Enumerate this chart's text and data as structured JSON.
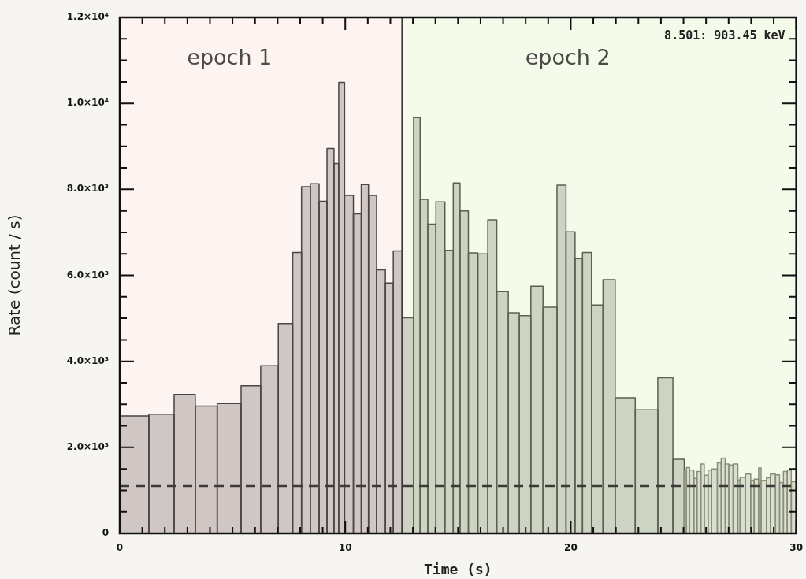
{
  "chart_data": {
    "type": "histogram",
    "xlabel": "Time (s)",
    "ylabel": "Rate (count / s)",
    "xlim": [
      0,
      30
    ],
    "ylim": [
      0,
      12000
    ],
    "xticks": [
      0,
      {
        "value": 1,
        "label": null
      },
      {
        "value": 2,
        "label": null
      },
      {
        "value": 3,
        "label": null
      },
      {
        "value": 4,
        "label": null
      },
      {
        "value": 5,
        "label": null
      },
      {
        "value": 6,
        "label": null
      },
      {
        "value": 7,
        "label": null
      },
      {
        "value": 8,
        "label": null
      },
      {
        "value": 9,
        "label": null
      },
      10,
      {
        "value": 11,
        "label": null
      },
      {
        "value": 12,
        "label": null
      },
      {
        "value": 13,
        "label": null
      },
      {
        "value": 14,
        "label": null
      },
      {
        "value": 15,
        "label": null
      },
      {
        "value": 16,
        "label": null
      },
      {
        "value": 17,
        "label": null
      },
      {
        "value": 18,
        "label": null
      },
      {
        "value": 19,
        "label": null
      },
      20,
      {
        "value": 21,
        "label": null
      },
      {
        "value": 22,
        "label": null
      },
      {
        "value": 23,
        "label": null
      },
      {
        "value": 24,
        "label": null
      },
      {
        "value": 25,
        "label": null
      },
      {
        "value": 26,
        "label": null
      },
      {
        "value": 27,
        "label": null
      },
      {
        "value": 28,
        "label": null
      },
      {
        "value": 29,
        "label": null
      },
      30
    ],
    "yticks": [
      0,
      {
        "value": 500,
        "label": null
      },
      {
        "value": 1000,
        "label": null
      },
      {
        "value": 1500,
        "label": null
      },
      {
        "value": 2000,
        "label": "2.0×10³"
      },
      {
        "value": 2500,
        "label": null
      },
      {
        "value": 3000,
        "label": null
      },
      {
        "value": 3500,
        "label": null
      },
      {
        "value": 4000,
        "label": "4.0×10³"
      },
      {
        "value": 4500,
        "label": null
      },
      {
        "value": 5000,
        "label": null
      },
      {
        "value": 5500,
        "label": null
      },
      {
        "value": 6000,
        "label": "6.0×10³"
      },
      {
        "value": 6500,
        "label": null
      },
      {
        "value": 7000,
        "label": null
      },
      {
        "value": 7500,
        "label": null
      },
      {
        "value": 8000,
        "label": "8.0×10³"
      },
      {
        "value": 8500,
        "label": null
      },
      {
        "value": 9000,
        "label": null
      },
      {
        "value": 9500,
        "label": null
      },
      {
        "value": 10000,
        "label": "1.0×10⁴"
      },
      {
        "value": 10500,
        "label": null
      },
      {
        "value": 11000,
        "label": null
      },
      {
        "value": 11500,
        "label": null
      },
      {
        "value": 12000,
        "label": "1.2×10⁴"
      }
    ],
    "bins": [
      0,
      1.29,
      2.41,
      3.35,
      4.32,
      5.38,
      6.25,
      7.03,
      7.67,
      8.06,
      8.45,
      8.84,
      9.19,
      9.5,
      9.71,
      9.97,
      10.36,
      10.71,
      11.03,
      11.39,
      11.78,
      12.13,
      12.53,
      13.03,
      13.32,
      13.66,
      14.02,
      14.42,
      14.79,
      15.09,
      15.46,
      15.88,
      16.32,
      16.72,
      17.23,
      17.72,
      18.23,
      18.77,
      19.39,
      19.79,
      20.19,
      20.52,
      20.92,
      21.43,
      21.97,
      22.86,
      23.86,
      24.53,
      25.03,
      25.13,
      25.27,
      25.46,
      25.6,
      25.77,
      25.92,
      26.09,
      26.24,
      26.5,
      26.67,
      26.85,
      27.01,
      27.2,
      27.41,
      27.51,
      27.75,
      27.98,
      28.13,
      28.33,
      28.44,
      28.68,
      28.85,
      29.08,
      29.26,
      29.43,
      29.6,
      29.78,
      30
    ],
    "values": [
      2730,
      2770,
      3230,
      2960,
      3020,
      3430,
      3900,
      4880,
      6530,
      8060,
      8130,
      7720,
      8950,
      8600,
      10490,
      7860,
      7430,
      8110,
      7860,
      6130,
      5820,
      6570,
      5010,
      9670,
      7770,
      7190,
      7710,
      6580,
      8150,
      7500,
      6520,
      6500,
      7290,
      5620,
      5130,
      5060,
      5750,
      5260,
      8100,
      7010,
      6390,
      6530,
      5310,
      5900,
      3150,
      2870,
      3620,
      1720,
      1470,
      1530,
      1470,
      1280,
      1440,
      1610,
      1350,
      1470,
      1500,
      1640,
      1750,
      1610,
      1590,
      1610,
      1240,
      1300,
      1380,
      1230,
      1260,
      1520,
      1230,
      1290,
      1380,
      1360,
      1180,
      1440,
      1470,
      1200
    ],
    "colors": [
      "#4a4444",
      "#4a4444",
      "#4a4444",
      "#4a4444",
      "#4a4444",
      "#4a4444",
      "#4a4444",
      "#4a4444",
      "#4a4444",
      "#4a4444",
      "#4a4444",
      "#4a4444",
      "#4a4444",
      "#4a4444",
      "#4a4444",
      "#4a4444",
      "#4a4444",
      "#4a4444",
      "#4a4444",
      "#4a4444",
      "#4a4444",
      "#4a4444",
      "#5b6050",
      "#5b6050",
      "#5b6050",
      "#5b6050",
      "#5b6050",
      "#5b6050",
      "#5b6050",
      "#5b6050",
      "#5b6050",
      "#5b6050",
      "#5b6050",
      "#5b6050",
      "#5b6050",
      "#5b6050",
      "#5b6050",
      "#5b6050",
      "#5b6050",
      "#5b6050",
      "#5b6050",
      "#5b6050",
      "#5b6050",
      "#5b6050",
      "#5b6050",
      "#5b6050",
      "#5b6050",
      "#5b6050",
      "#8a8e7a",
      "#8a8e7a",
      "#8a8e7a",
      "#8a8e7a",
      "#8a8e7a",
      "#8a8e7a",
      "#8a8e7a",
      "#8a8e7a",
      "#8a8e7a",
      "#8a8e7a",
      "#8a8e7a",
      "#8a8e7a",
      "#8a8e7a",
      "#8a8e7a",
      "#8a8e7a",
      "#8a8e7a",
      "#8a8e7a",
      "#8a8e7a",
      "#8a8e7a",
      "#8a8e7a",
      "#8a8e7a",
      "#8a8e7a",
      "#8a8e7a",
      "#8a8e7a",
      "#8a8e7a",
      "#8a8e7a",
      "#8a8e7a",
      "#8a8e7a"
    ],
    "bands": [
      {
        "axis": "x",
        "from": 0,
        "to": 12.53,
        "label": "epoch 1",
        "color": "#fdf3f0"
      },
      {
        "axis": "x",
        "from": 12.53,
        "to": 30,
        "label": "epoch 2",
        "color": "#f5fbeb"
      }
    ],
    "ref_lines": [
      {
        "axis": "x",
        "value": 12.53,
        "color": "#3a3a36"
      },
      {
        "axis": "y",
        "value": 1100,
        "color": "#3a3a36",
        "line_style": "dashed"
      }
    ],
    "annotations": [
      "8.501: 903.45 keV"
    ]
  }
}
